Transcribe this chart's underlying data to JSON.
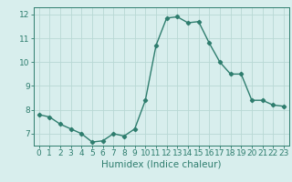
{
  "x": [
    0,
    1,
    2,
    3,
    4,
    5,
    6,
    7,
    8,
    9,
    10,
    11,
    12,
    13,
    14,
    15,
    16,
    17,
    18,
    19,
    20,
    21,
    22,
    23
  ],
  "y": [
    7.8,
    7.7,
    7.4,
    7.2,
    7.0,
    6.65,
    6.7,
    7.0,
    6.9,
    7.2,
    8.4,
    10.7,
    11.85,
    11.9,
    11.65,
    11.7,
    10.8,
    10.0,
    9.5,
    9.5,
    8.4,
    8.4,
    8.2,
    8.15
  ],
  "line_color": "#2e7d6e",
  "marker": "D",
  "marker_size": 2.2,
  "bg_color": "#d8eeed",
  "grid_color": "#b8d8d4",
  "xlabel": "Humidex (Indice chaleur)",
  "ylim": [
    6.5,
    12.3
  ],
  "xlim": [
    -0.5,
    23.5
  ],
  "yticks": [
    7,
    8,
    9,
    10,
    11,
    12
  ],
  "xticks": [
    0,
    1,
    2,
    3,
    4,
    5,
    6,
    7,
    8,
    9,
    10,
    11,
    12,
    13,
    14,
    15,
    16,
    17,
    18,
    19,
    20,
    21,
    22,
    23
  ],
  "tick_label_size": 6.5,
  "xlabel_size": 7.5,
  "line_width": 1.0
}
